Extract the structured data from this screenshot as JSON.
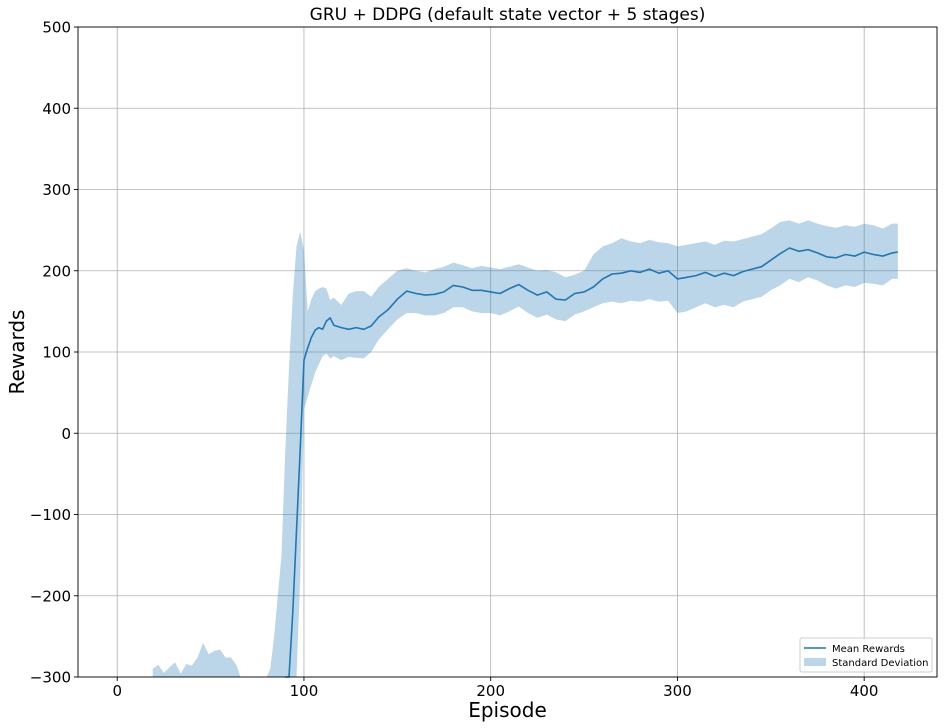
{
  "chart_data": {
    "type": "line",
    "title": "GRU + DDPG (default state vector + 5 stages)",
    "xlabel": "Episode",
    "ylabel": "Rewards",
    "xlim": [
      -21,
      439
    ],
    "ylim": [
      -300,
      500
    ],
    "xticks": [
      0,
      100,
      200,
      300,
      400
    ],
    "yticks": [
      -300,
      -200,
      -100,
      0,
      100,
      200,
      300,
      400,
      500
    ],
    "xtick_labels": [
      "0",
      "100",
      "200",
      "300",
      "400"
    ],
    "ytick_labels": [
      "−300",
      "−200",
      "−100",
      "0",
      "100",
      "200",
      "300",
      "400",
      "500"
    ],
    "grid": true,
    "legend_position": "lower-right",
    "colors": {
      "line": "#1f77b4",
      "band": "#1f77b4",
      "band_opacity": 0.3
    },
    "series": [
      {
        "name": "Mean Rewards",
        "kind": "line",
        "x": [
          90,
          92,
          94,
          96,
          98,
          100,
          102,
          104,
          106,
          108,
          110,
          112,
          114,
          116,
          120,
          124,
          128,
          132,
          136,
          140,
          145,
          150,
          155,
          160,
          165,
          170,
          175,
          180,
          185,
          190,
          195,
          200,
          205,
          210,
          215,
          220,
          225,
          230,
          235,
          240,
          245,
          250,
          255,
          260,
          265,
          270,
          275,
          280,
          285,
          290,
          295,
          300,
          305,
          310,
          315,
          320,
          325,
          330,
          335,
          340,
          345,
          350,
          355,
          360,
          365,
          370,
          375,
          380,
          385,
          390,
          395,
          400,
          405,
          410,
          415,
          418
        ],
        "y": [
          -320,
          -300,
          -220,
          -120,
          -20,
          90,
          105,
          118,
          127,
          130,
          128,
          138,
          142,
          133,
          130,
          128,
          130,
          128,
          132,
          143,
          152,
          165,
          175,
          172,
          170,
          171,
          174,
          182,
          180,
          176,
          176,
          174,
          172,
          178,
          183,
          176,
          170,
          174,
          165,
          164,
          172,
          174,
          180,
          190,
          196,
          197,
          200,
          198,
          202,
          197,
          200,
          190,
          192,
          194,
          198,
          193,
          197,
          194,
          199,
          202,
          205,
          213,
          221,
          228,
          224,
          226,
          222,
          217,
          216,
          220,
          218,
          223,
          220,
          218,
          222,
          223
        ]
      },
      {
        "name": "Standard Deviation",
        "kind": "band",
        "segments": [
          {
            "x": [
              19,
              22,
              25,
              28,
              31,
              34,
              37,
              40,
              43,
              46,
              49,
              52,
              55,
              58,
              61,
              64,
              66
            ],
            "upper": [
              -290,
              -285,
              -295,
              -288,
              -282,
              -296,
              -284,
              -286,
              -276,
              -258,
              -272,
              -268,
              -266,
              -276,
              -276,
              -286,
              -300
            ],
            "lower": [
              -300,
              -300,
              -300,
              -300,
              -300,
              -300,
              -300,
              -300,
              -300,
              -300,
              -300,
              -300,
              -300,
              -300,
              -300,
              -300,
              -300
            ]
          },
          {
            "x": [
              80,
              82,
              84,
              86,
              88,
              90,
              92,
              94,
              96,
              98,
              100,
              102,
              104,
              106,
              108,
              110,
              112,
              114,
              116,
              120,
              124,
              128,
              132,
              136,
              140,
              145,
              150,
              155,
              160,
              165,
              170,
              175,
              180,
              185,
              190,
              195,
              200,
              205,
              210,
              215,
              220,
              225,
              230,
              235,
              240,
              245,
              250,
              255,
              260,
              265,
              270,
              275,
              280,
              285,
              290,
              295,
              300,
              305,
              310,
              315,
              320,
              325,
              330,
              335,
              340,
              345,
              350,
              355,
              360,
              365,
              370,
              375,
              380,
              385,
              390,
              395,
              400,
              405,
              410,
              415,
              418
            ],
            "upper": [
              -300,
              -290,
              -250,
              -200,
              -150,
              -20,
              80,
              170,
              230,
              248,
              225,
              150,
              165,
              175,
              178,
              180,
              178,
              164,
              167,
              158,
              172,
              175,
              175,
              168,
              180,
              190,
              200,
              203,
              200,
              198,
              202,
              205,
              210,
              207,
              203,
              206,
              204,
              202,
              205,
              208,
              204,
              200,
              201,
              198,
              192,
              195,
              200,
              220,
              230,
              234,
              240,
              236,
              234,
              238,
              235,
              234,
              230,
              232,
              234,
              236,
              232,
              237,
              236,
              239,
              242,
              245,
              252,
              260,
              262,
              258,
              262,
              258,
              255,
              253,
              256,
              254,
              258,
              256,
              252,
              258,
              258
            ],
            "lower": [
              -300,
              -300,
              -300,
              -300,
              -300,
              -300,
              -300,
              -300,
              -300,
              -180,
              30,
              45,
              60,
              75,
              85,
              95,
              98,
              92,
              95,
              90,
              94,
              93,
              92,
              100,
              115,
              128,
              140,
              148,
              148,
              145,
              145,
              148,
              155,
              155,
              150,
              148,
              148,
              145,
              150,
              156,
              148,
              142,
              146,
              140,
              138,
              146,
              150,
              155,
              160,
              162,
              160,
              163,
              162,
              165,
              162,
              163,
              148,
              150,
              155,
              160,
              155,
              158,
              155,
              162,
              165,
              168,
              176,
              182,
              190,
              186,
              192,
              188,
              182,
              178,
              182,
              180,
              185,
              184,
              182,
              190,
              190
            ]
          }
        ]
      }
    ]
  }
}
